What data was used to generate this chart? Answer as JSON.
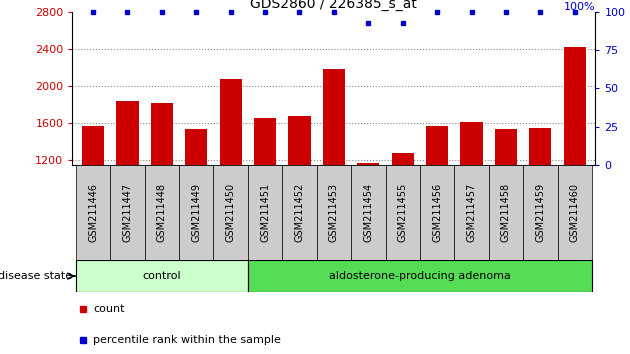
{
  "title": "GDS2860 / 226385_s_at",
  "samples": [
    "GSM211446",
    "GSM211447",
    "GSM211448",
    "GSM211449",
    "GSM211450",
    "GSM211451",
    "GSM211452",
    "GSM211453",
    "GSM211454",
    "GSM211455",
    "GSM211456",
    "GSM211457",
    "GSM211458",
    "GSM211459",
    "GSM211460"
  ],
  "counts": [
    1570,
    1840,
    1820,
    1540,
    2080,
    1650,
    1680,
    2190,
    1170,
    1280,
    1570,
    1610,
    1540,
    1550,
    2430
  ],
  "percentiles": [
    100,
    100,
    100,
    100,
    100,
    100,
    100,
    100,
    93,
    93,
    100,
    100,
    100,
    100,
    100
  ],
  "ylim_left": [
    1150,
    2800
  ],
  "ylim_right": [
    0,
    100
  ],
  "yticks_left": [
    1200,
    1600,
    2000,
    2400,
    2800
  ],
  "yticks_right": [
    0,
    25,
    50,
    75,
    100
  ],
  "bar_color": "#cc0000",
  "dot_color": "#0000cc",
  "grid_color": "#888888",
  "bg_color": "#ffffff",
  "control_color": "#ccffcc",
  "adenoma_color": "#55dd55",
  "control_label": "control",
  "adenoma_label": "aldosterone-producing adenoma",
  "disease_label": "disease state",
  "n_control": 5,
  "legend_count_label": "count",
  "legend_percentile_label": "percentile rank within the sample",
  "tick_bg_color": "#cccccc",
  "spine_color": "#000000"
}
